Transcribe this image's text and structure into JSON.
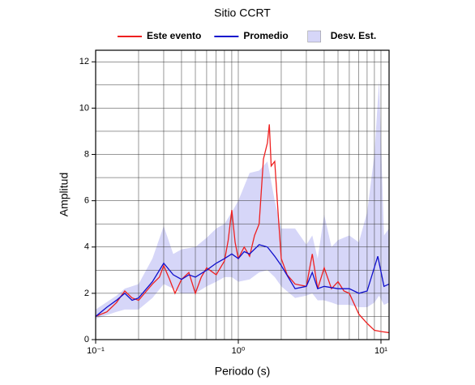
{
  "chart_data": {
    "type": "line",
    "title": "Sitio CCRT",
    "x_label": "Periodo (s)",
    "y_label": "Amplitud",
    "xscale": "log",
    "xlim": [
      0.1,
      11.4
    ],
    "ylim": [
      0,
      12.5
    ],
    "xticks": [
      {
        "value": 0.1,
        "label": "10⁻¹"
      },
      {
        "value": 1,
        "label": "10⁰"
      },
      {
        "value": 10,
        "label": "10¹"
      }
    ],
    "minor_xticks": [
      0.2,
      0.3,
      0.4,
      0.5,
      0.6,
      0.7,
      0.8,
      0.9,
      2,
      3,
      4,
      5,
      6,
      7,
      8,
      9
    ],
    "yticks": [
      0,
      2,
      4,
      6,
      8,
      10,
      12
    ],
    "minor_yticks": [
      1,
      3,
      5,
      7,
      9,
      11
    ],
    "grid": true,
    "series": [
      {
        "name": "Desv. Est.",
        "type": "band",
        "color": "#d6d6f8",
        "x": [
          0.1,
          0.14,
          0.16,
          0.2,
          0.25,
          0.3,
          0.35,
          0.4,
          0.5,
          0.6,
          0.7,
          0.8,
          0.9,
          1.0,
          1.2,
          1.4,
          1.6,
          1.8,
          2.0,
          2.5,
          3.0,
          3.3,
          3.6,
          4.0,
          4.5,
          5.0,
          6.0,
          7.0,
          8.0,
          9.0,
          9.7,
          10.5,
          11.4
        ],
        "lower": [
          0.9,
          1.2,
          1.3,
          1.3,
          1.8,
          2.4,
          2.2,
          2.0,
          2.0,
          2.3,
          2.5,
          2.7,
          2.7,
          2.5,
          2.6,
          2.9,
          3.0,
          2.7,
          2.3,
          1.8,
          1.9,
          2.0,
          1.7,
          1.7,
          1.6,
          1.5,
          1.5,
          1.4,
          1.4,
          1.6,
          1.9,
          1.5,
          1.6
        ],
        "upper": [
          1.3,
          1.9,
          2.2,
          2.4,
          3.5,
          4.9,
          3.7,
          3.9,
          4.0,
          4.4,
          4.8,
          5.0,
          5.5,
          6.0,
          7.2,
          7.3,
          7.7,
          6.0,
          4.8,
          4.8,
          4.1,
          4.5,
          3.5,
          5.4,
          4.0,
          4.3,
          4.5,
          4.2,
          5.5,
          8.0,
          11.2,
          4.5,
          4.8
        ]
      },
      {
        "name": "Este evento",
        "type": "line",
        "color": "#ee2020",
        "x": [
          0.1,
          0.12,
          0.14,
          0.16,
          0.18,
          0.2,
          0.22,
          0.25,
          0.28,
          0.3,
          0.33,
          0.36,
          0.4,
          0.45,
          0.5,
          0.55,
          0.6,
          0.7,
          0.8,
          0.85,
          0.9,
          0.95,
          1.0,
          1.1,
          1.2,
          1.3,
          1.4,
          1.5,
          1.6,
          1.65,
          1.7,
          1.8,
          1.9,
          2.0,
          2.2,
          2.5,
          3.0,
          3.3,
          3.6,
          4.0,
          4.5,
          5.0,
          5.5,
          6.0,
          7.0,
          8.0,
          9.0,
          10.0,
          11.4
        ],
        "values": [
          1.0,
          1.2,
          1.6,
          2.1,
          1.8,
          1.7,
          2.0,
          2.4,
          2.7,
          3.2,
          2.6,
          2.0,
          2.6,
          2.9,
          2.0,
          2.7,
          3.1,
          2.8,
          3.4,
          4.3,
          5.6,
          4.2,
          3.5,
          4.0,
          3.6,
          4.5,
          5.0,
          7.8,
          8.5,
          9.3,
          7.5,
          7.7,
          5.5,
          3.5,
          2.8,
          2.4,
          2.3,
          3.7,
          2.2,
          3.1,
          2.2,
          2.5,
          2.1,
          2.0,
          1.1,
          0.7,
          0.4,
          0.35,
          0.3
        ]
      },
      {
        "name": "Promedio",
        "type": "line",
        "color": "#1010cc",
        "x": [
          0.1,
          0.12,
          0.14,
          0.16,
          0.18,
          0.2,
          0.25,
          0.3,
          0.35,
          0.4,
          0.45,
          0.5,
          0.6,
          0.7,
          0.8,
          0.9,
          1.0,
          1.1,
          1.2,
          1.4,
          1.6,
          1.8,
          2.0,
          2.5,
          3.0,
          3.3,
          3.6,
          4.0,
          5.0,
          6.0,
          7.0,
          8.0,
          9.5,
          10.5,
          11.4
        ],
        "values": [
          1.0,
          1.4,
          1.7,
          2.0,
          1.7,
          1.8,
          2.5,
          3.3,
          2.8,
          2.6,
          2.8,
          2.7,
          3.0,
          3.3,
          3.5,
          3.7,
          3.5,
          3.8,
          3.7,
          4.1,
          4.0,
          3.6,
          3.2,
          2.2,
          2.3,
          2.9,
          2.2,
          2.3,
          2.2,
          2.2,
          2.0,
          2.1,
          3.6,
          2.3,
          2.4
        ]
      }
    ]
  }
}
